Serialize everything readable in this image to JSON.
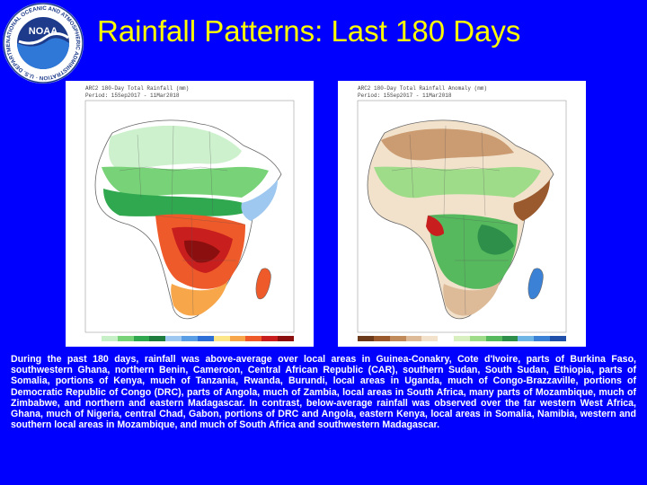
{
  "header": {
    "title": "Rainfall Patterns: Last 180 Days",
    "logo_text": "NOAA",
    "logo_ring_text": "NATIONAL OCEANIC AND ATMOSPHERIC ADMINISTRATION · U.S. DEPARTMENT OF COMMERCE"
  },
  "maps": {
    "left": {
      "title": "ARC2 180-Day Total Rainfall (mm)",
      "period": "Period: 15Sep2017 - 11Mar2018"
    },
    "right": {
      "title": "ARC2 180-Day Total Rainfall Anomaly (mm)",
      "period": "Period: 15Sep2017 - 11Mar2018"
    }
  },
  "summary": {
    "text": "During the past 180 days, rainfall was above-average over local areas in Guinea-Conakry, Cote d'Ivoire, parts of Burkina Faso, southwestern Ghana, northern Benin, Cameroon, Central African Republic (CAR), southern Sudan, South Sudan, Ethiopia, parts of Somalia, portions of Kenya, much of Tanzania, Rwanda, Burundi, local areas in Uganda, much of Congo-Brazzaville, portions of Democratic Republic of Congo (DRC), parts of Angola, much of Zambia, local areas in South Africa, many parts of Mozambique, much of Zimbabwe, and northern and eastern Madagascar. In contrast, below-average rainfall was observed over the far western West Africa, Ghana, much of Nigeria, central Chad, Gabon, portions of DRC and Angola, eastern Kenya, local areas in Somalia, Namibia, western and southern local areas in Mozambique, and much of South Africa and southwestern Madagascar."
  },
  "colors": {
    "background": "#0000ff",
    "title": "#ffff00",
    "text": "#ffffff",
    "total_scale": [
      "#ffffff",
      "#c8f0c8",
      "#78d278",
      "#2fa84f",
      "#1e7d3c",
      "#9ec8f0",
      "#5a9fe6",
      "#2d6fd6",
      "#fde58a",
      "#f7a64a",
      "#ef5a2a",
      "#c81e1e",
      "#8c0f0f"
    ],
    "anomaly_scale": [
      "#6b3a1a",
      "#9a5a2e",
      "#c08a5a",
      "#ddbb99",
      "#f2e2cc",
      "#ffffff",
      "#d8f0c0",
      "#9fdc8a",
      "#56b95e",
      "#2d8f4a",
      "#6fb5e6",
      "#3b82d6",
      "#1f4fa8"
    ]
  }
}
